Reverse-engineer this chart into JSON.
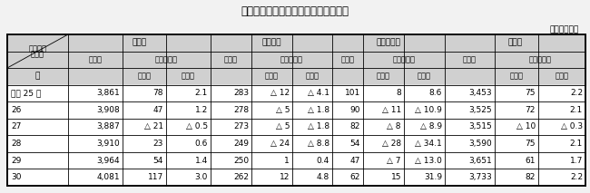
{
  "title": "表３　従業上の地位別就業者数の推移",
  "unit_label": "（千人、％）",
  "rows": [
    {
      "year": "平成 25 年",
      "s_jis": "3,861",
      "s_zo": "78",
      "s_ri": "2.1",
      "j_jis": "283",
      "j_zo": "△ 12",
      "j_ri": "△ 4.1",
      "k_jis": "101",
      "k_zo": "8",
      "k_ri": "8.6",
      "e_jis": "3,453",
      "e_zo": "75",
      "e_ri": "2.2"
    },
    {
      "year": "26",
      "s_jis": "3,908",
      "s_zo": "47",
      "s_ri": "1.2",
      "j_jis": "278",
      "j_zo": "△ 5",
      "j_ri": "△ 1.8",
      "k_jis": "90",
      "k_zo": "△ 11",
      "k_ri": "△ 10.9",
      "e_jis": "3,525",
      "e_zo": "72",
      "e_ri": "2.1"
    },
    {
      "year": "27",
      "s_jis": "3,887",
      "s_zo": "△ 21",
      "s_ri": "△ 0.5",
      "j_jis": "273",
      "j_zo": "△ 5",
      "j_ri": "△ 1.8",
      "k_jis": "82",
      "k_zo": "△ 8",
      "k_ri": "△ 8.9",
      "e_jis": "3,515",
      "e_zo": "△ 10",
      "e_ri": "△ 0.3"
    },
    {
      "year": "28",
      "s_jis": "3,910",
      "s_zo": "23",
      "s_ri": "0.6",
      "j_jis": "249",
      "j_zo": "△ 24",
      "j_ri": "△ 8.8",
      "k_jis": "54",
      "k_zo": "△ 28",
      "k_ri": "△ 34.1",
      "e_jis": "3,590",
      "e_zo": "75",
      "e_ri": "2.1"
    },
    {
      "year": "29",
      "s_jis": "3,964",
      "s_zo": "54",
      "s_ri": "1.4",
      "j_jis": "250",
      "j_zo": "1",
      "j_ri": "0.4",
      "k_jis": "47",
      "k_zo": "△ 7",
      "k_ri": "△ 13.0",
      "e_jis": "3,651",
      "e_zo": "61",
      "e_ri": "1.7"
    },
    {
      "year": "30",
      "s_jis": "4,081",
      "s_zo": "117",
      "s_ri": "3.0",
      "j_jis": "262",
      "j_zo": "12",
      "j_ri": "4.8",
      "k_jis": "62",
      "k_zo": "15",
      "k_ri": "31.9",
      "e_jis": "3,733",
      "e_zo": "82",
      "e_ri": "2.2"
    }
  ],
  "bg_color": "#f2f2f2",
  "header_bg": "#d0d0d0",
  "white": "#ffffff"
}
